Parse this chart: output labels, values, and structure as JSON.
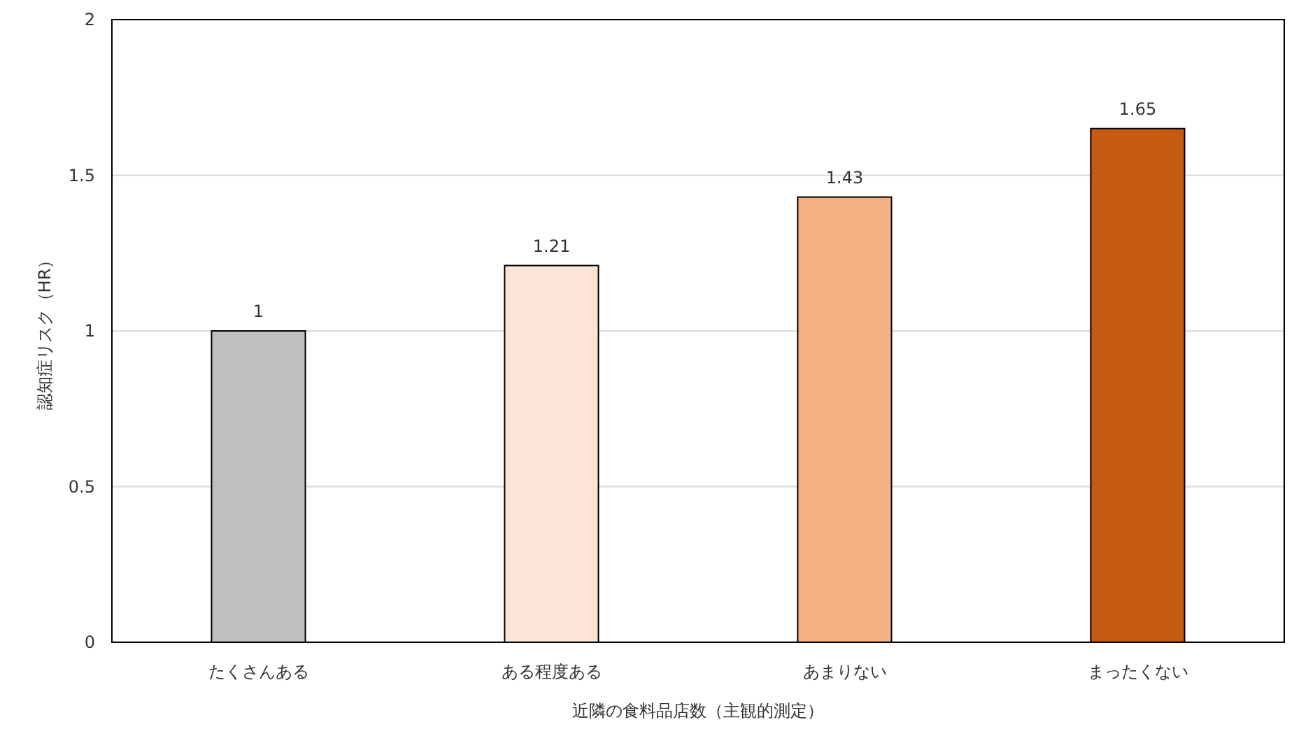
{
  "chart_data": {
    "type": "bar",
    "xlabel": "近隣の食料品店数（主観的測定）",
    "ylabel": "認知症リスク（HR）",
    "categories": [
      "たくさんある",
      "ある程度ある",
      "あまりない",
      "まったくない"
    ],
    "values": [
      1,
      1.21,
      1.43,
      1.65
    ],
    "colors": [
      "#bfbfbf",
      "#fbe5d6",
      "#f4b183",
      "#c55a11"
    ],
    "ylim": [
      0,
      2
    ],
    "yticks": [
      0,
      0.5,
      1,
      1.5,
      2
    ],
    "grid": "y",
    "data_labels": true
  }
}
